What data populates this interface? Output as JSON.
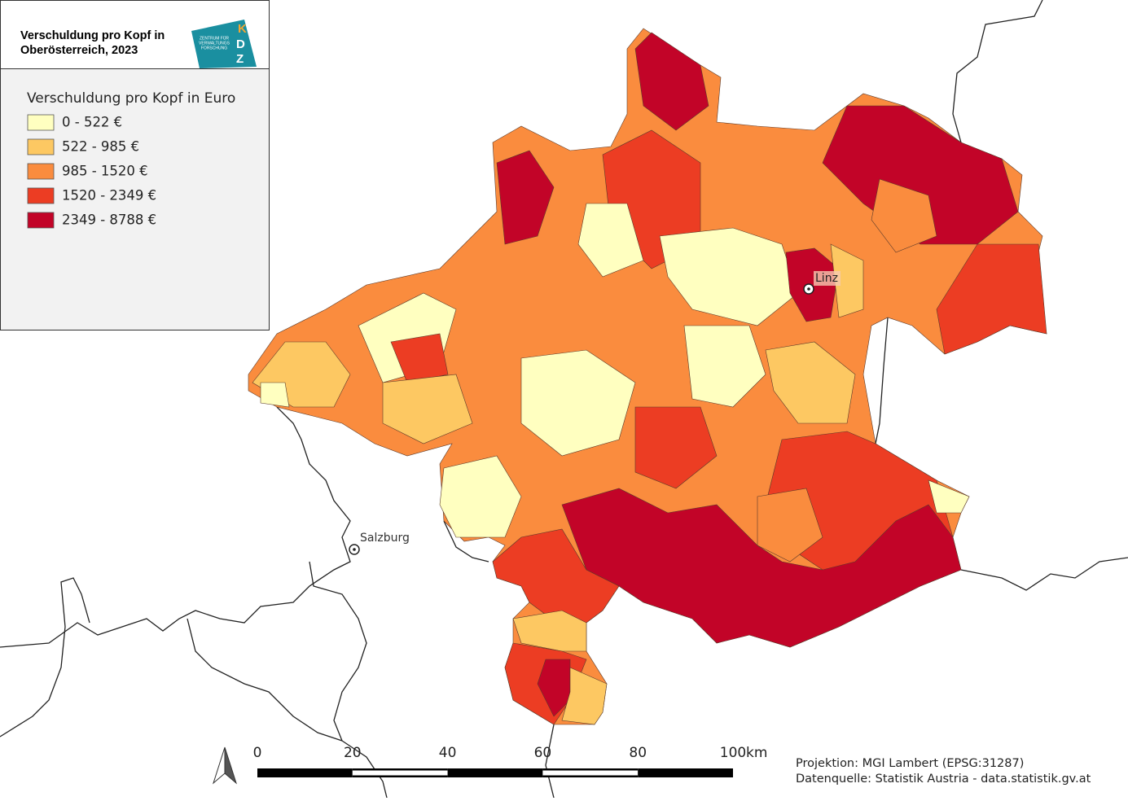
{
  "header": {
    "title_lines": [
      "Verschuldung pro Kopf in",
      "Oberösterreich, 2023"
    ],
    "logo": {
      "letters": [
        "K",
        "D",
        "Z"
      ],
      "text_lines": [
        "ZENTRUM FÜR",
        "VERWALTUNGS",
        "FORSCHUNG"
      ],
      "color": "#1a8fa0"
    }
  },
  "legend": {
    "title": "Verschuldung pro Kopf in Euro",
    "classes": [
      {
        "label": "0 - 522 €",
        "color": "#ffffc0"
      },
      {
        "label": "522 - 985 €",
        "color": "#fdc862"
      },
      {
        "label": "985 - 1520 €",
        "color": "#fa8c3e"
      },
      {
        "label": "1520 - 2349 €",
        "color": "#ec3d23"
      },
      {
        "label": "2349 - 8788 €",
        "color": "#c20428"
      }
    ]
  },
  "places": [
    {
      "name": "Linz"
    },
    {
      "name": "Salzburg"
    }
  ],
  "scale_bar": {
    "ticks": [
      0,
      20,
      40,
      60,
      80,
      100
    ],
    "unit": "km"
  },
  "footer": [
    "Projektion: MGI Lambert (EPSG:31287)",
    "Datenquelle: Statistik Austria - data.statistik.gv.at"
  ]
}
